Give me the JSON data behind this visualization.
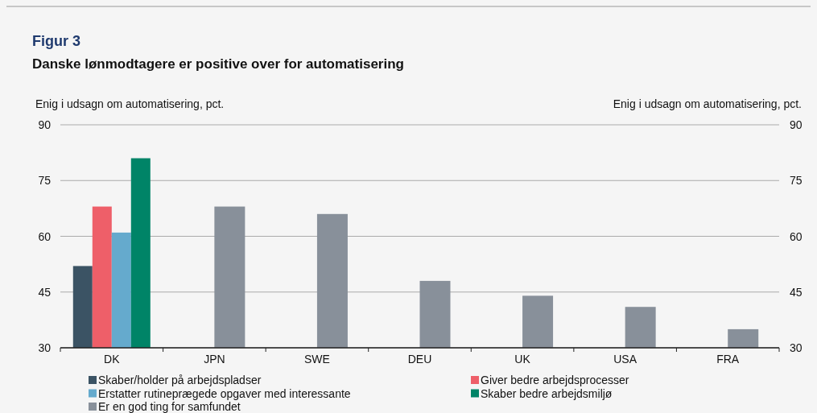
{
  "chart_data": {
    "type": "bar",
    "title": "Figur 3",
    "subtitle": "Danske lønmodtagere er positive over for automatisering",
    "ylabel": "Enig i udsagn om automatisering, pct.",
    "y2label": "Enig i udsagn om automatisering, pct.",
    "categories": [
      "DK",
      "JPN",
      "SWE",
      "DEU",
      "UK",
      "USA",
      "FRA"
    ],
    "series": [
      {
        "name": "Skaber/holder på arbejdspladser",
        "color": "#3b5364",
        "values": [
          52,
          null,
          null,
          null,
          null,
          null,
          null
        ]
      },
      {
        "name": "Giver bedre arbejdsprocesser",
        "color": "#ee5f69",
        "values": [
          68,
          null,
          null,
          null,
          null,
          null,
          null
        ]
      },
      {
        "name": "Erstatter rutineprægede opgaver med interessante",
        "color": "#65aacd",
        "values": [
          61,
          null,
          null,
          null,
          null,
          null,
          null
        ]
      },
      {
        "name": "Skaber bedre arbejdsmiljø",
        "color": "#008467",
        "values": [
          81,
          null,
          null,
          null,
          null,
          null,
          null
        ]
      },
      {
        "name": "Er en god ting for samfundet",
        "color": "#88909a",
        "axis": "y2",
        "values": [
          null,
          68,
          66,
          48,
          44,
          41,
          35
        ]
      }
    ],
    "ylim": [
      30,
      90
    ],
    "yticks": [
      30,
      45,
      60,
      75,
      90
    ],
    "y2lim": [
      30,
      90
    ],
    "y2ticks": [
      30,
      45,
      60,
      75,
      90
    ],
    "grid": "y",
    "legend": "bottom"
  }
}
